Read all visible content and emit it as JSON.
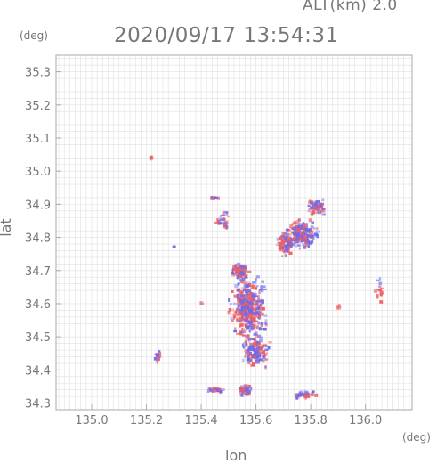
{
  "header": {
    "altitude_label": "ALT(km) 2.0",
    "timestamp": "2020/09/17 13:54:31"
  },
  "axes": {
    "y_unit": "(deg)",
    "x_unit": "(deg)",
    "y_name": "lat",
    "x_name": "lon"
  },
  "colors": {
    "frame": "#aaaaaa",
    "grid": "#e0e0e0",
    "text": "#777777",
    "positive": "#f06060",
    "negative": "#6a6af0"
  },
  "chart_data": {
    "type": "heatmap",
    "title": "2020/09/17 13:54:31",
    "subtitle": "ALT(km) 2.0",
    "xlabel": "lon",
    "ylabel": "lat",
    "xunit": "(deg)",
    "yunit": "(deg)",
    "xlim": [
      134.87,
      136.17
    ],
    "ylim": [
      34.28,
      35.35
    ],
    "xticks": [
      "135.0",
      "135.2",
      "135.4",
      "135.6",
      "135.8",
      "136.0"
    ],
    "yticks": [
      "34.3",
      "34.4",
      "34.5",
      "34.6",
      "34.7",
      "34.8",
      "34.9",
      "35.0",
      "35.1",
      "35.2",
      "35.3"
    ],
    "grid": true,
    "legend": "none",
    "clusters": [
      {
        "lon": 135.57,
        "lat": 34.59,
        "rlon": 0.08,
        "rlat": 0.12,
        "n": 420
      },
      {
        "lon": 135.6,
        "lat": 34.46,
        "rlon": 0.06,
        "rlat": 0.06,
        "n": 160
      },
      {
        "lon": 135.77,
        "lat": 34.81,
        "rlon": 0.07,
        "rlat": 0.05,
        "n": 220
      },
      {
        "lon": 135.71,
        "lat": 34.78,
        "rlon": 0.04,
        "rlat": 0.05,
        "n": 90
      },
      {
        "lon": 135.82,
        "lat": 34.89,
        "rlon": 0.04,
        "rlat": 0.03,
        "n": 70
      },
      {
        "lon": 135.54,
        "lat": 34.7,
        "rlon": 0.04,
        "rlat": 0.03,
        "n": 80
      },
      {
        "lon": 135.56,
        "lat": 34.34,
        "rlon": 0.03,
        "rlat": 0.02,
        "n": 50
      },
      {
        "lon": 135.45,
        "lat": 34.34,
        "rlon": 0.05,
        "rlat": 0.008,
        "n": 30
      },
      {
        "lon": 135.78,
        "lat": 34.325,
        "rlon": 0.06,
        "rlat": 0.015,
        "n": 45
      },
      {
        "lon": 135.24,
        "lat": 34.44,
        "rlon": 0.015,
        "rlat": 0.02,
        "n": 18
      },
      {
        "lon": 135.45,
        "lat": 34.92,
        "rlon": 0.02,
        "rlat": 0.005,
        "n": 10
      },
      {
        "lon": 135.48,
        "lat": 34.85,
        "rlon": 0.03,
        "rlat": 0.04,
        "n": 30
      },
      {
        "lon": 136.05,
        "lat": 34.64,
        "rlon": 0.02,
        "rlat": 0.04,
        "n": 16
      },
      {
        "lon": 135.9,
        "lat": 34.59,
        "rlon": 0.01,
        "rlat": 0.01,
        "n": 5
      },
      {
        "lon": 135.22,
        "lat": 35.04,
        "rlon": 0.01,
        "rlat": 0.006,
        "n": 5
      },
      {
        "lon": 135.4,
        "lat": 34.6,
        "rlon": 0.006,
        "rlat": 0.006,
        "n": 3
      },
      {
        "lon": 135.3,
        "lat": 34.77,
        "rlon": 0.005,
        "rlat": 0.004,
        "n": 2
      }
    ]
  }
}
